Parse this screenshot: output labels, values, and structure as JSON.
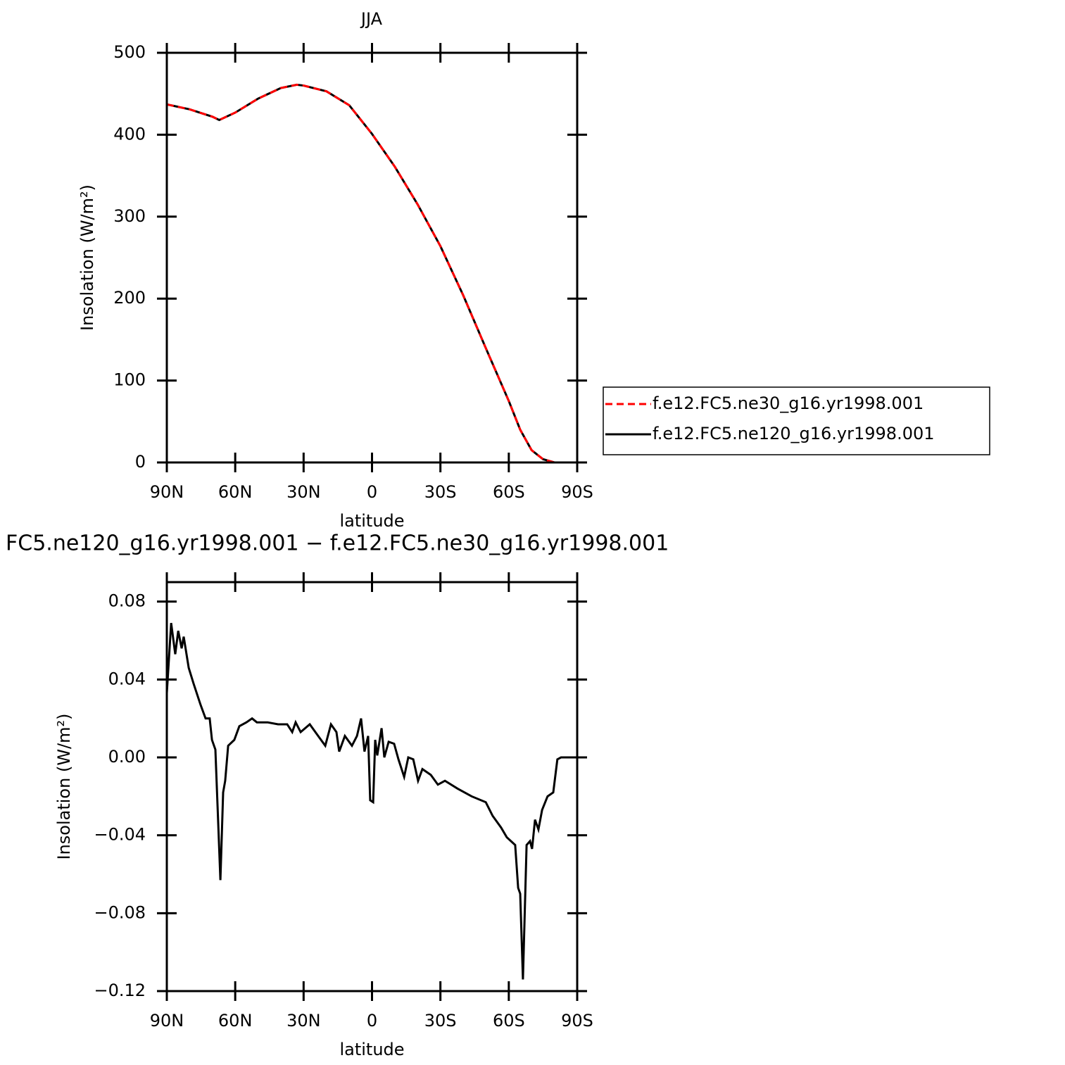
{
  "chart_data": [
    {
      "type": "line",
      "title": "JJA",
      "xlabel": "latitude",
      "ylabel": "Insolation (W/m²)",
      "x": [
        90,
        80,
        70,
        67,
        60,
        50,
        40,
        33,
        30,
        20,
        10,
        0,
        -10,
        -20,
        -30,
        -40,
        -50,
        -60,
        -65,
        -70,
        -75,
        -80,
        -90
      ],
      "series": [
        {
          "name": "f.e12.FC5.ne30_g16.yr1998.001",
          "color": "#ff0000",
          "dash": true,
          "values": [
            437,
            431,
            422,
            418,
            427,
            444,
            457,
            461,
            460,
            453,
            436,
            401,
            361,
            315,
            264,
            204,
            139,
            75,
            40,
            15,
            4,
            0,
            0
          ]
        },
        {
          "name": "f.e12.FC5.ne120_g16.yr1998.001",
          "color": "#000000",
          "dash": false,
          "values": [
            437,
            431,
            422,
            418,
            427,
            444,
            457,
            461,
            460,
            453,
            436,
            401,
            361,
            315,
            264,
            204,
            139,
            75,
            40,
            15,
            4,
            0,
            0
          ]
        }
      ],
      "xlim": [
        90,
        -90
      ],
      "xticks": [
        {
          "value": 90,
          "label": "90N"
        },
        {
          "value": 60,
          "label": "60N"
        },
        {
          "value": 30,
          "label": "30N"
        },
        0,
        {
          "value": -30,
          "label": "30S"
        },
        {
          "value": -60,
          "label": "60S"
        },
        {
          "value": -90,
          "label": "90S"
        }
      ],
      "ylim": [
        0,
        500
      ],
      "yticks": [
        0,
        100,
        200,
        300,
        400,
        500
      ],
      "legend": "right"
    },
    {
      "type": "line",
      "title": "FC5.ne120_g16.yr1998.001 − f.e12.FC5.ne30_g16.yr1998.001",
      "xlabel": "latitude",
      "ylabel": "Insolation (W/m²)",
      "x": [
        90,
        88.1,
        86.3,
        85,
        83.5,
        82.6,
        80.4,
        78.3,
        75.2,
        73,
        71.2,
        70.2,
        68.7,
        66.5,
        65.3,
        64.4,
        63.1,
        60.4,
        58.2,
        55.1,
        52.6,
        50.5,
        45.8,
        41.2,
        37.2,
        35,
        33.5,
        31.3,
        27.3,
        23.6,
        20.5,
        18,
        15.6,
        14.4,
        11.9,
        8.8,
        6.6,
        4.8,
        3.3,
        1.7,
        0.8,
        -0.5,
        -1.4,
        -2.3,
        -4.2,
        -5.4,
        -7.3,
        -9.7,
        -11.6,
        -14.1,
        -15.9,
        -18.1,
        -20.2,
        -22.1,
        -25.8,
        -28.9,
        -32,
        -37.5,
        -43.7,
        -49.9,
        -52.9,
        -56.6,
        -59.1,
        -62.8,
        -64.1,
        -65,
        -66.2,
        -67.8,
        -69.3,
        -70.2,
        -71.5,
        -73,
        -74.6,
        -77,
        -79.5,
        -81.3,
        -82.9,
        -90
      ],
      "series": [
        {
          "color": "#000000",
          "values": [
            0.033,
            0.069,
            0.053,
            0.065,
            0.056,
            0.062,
            0.046,
            0.038,
            0.027,
            0.02,
            0.02,
            0.009,
            0.004,
            -0.063,
            -0.018,
            -0.012,
            0.006,
            0.009,
            0.016,
            0.018,
            0.02,
            0.018,
            0.018,
            0.017,
            0.017,
            0.013,
            0.018,
            0.013,
            0.017,
            0.011,
            0.006,
            0.017,
            0.013,
            0.003,
            0.011,
            0.006,
            0.011,
            0.02,
            0.003,
            0.011,
            -0.022,
            -0.023,
            0.009,
            0.001,
            0.015,
            0,
            0.008,
            0.007,
            -0.001,
            -0.01,
            0,
            -0.001,
            -0.012,
            -0.006,
            -0.009,
            -0.014,
            -0.012,
            -0.016,
            -0.02,
            -0.023,
            -0.03,
            -0.036,
            -0.041,
            -0.045,
            -0.067,
            -0.07,
            -0.114,
            -0.045,
            -0.043,
            -0.047,
            -0.032,
            -0.037,
            -0.027,
            -0.02,
            -0.018,
            -0.001,
            0,
            0
          ]
        }
      ],
      "xlim": [
        90,
        -90
      ],
      "xticks": [
        {
          "value": 90,
          "label": "90N"
        },
        {
          "value": 60,
          "label": "60N"
        },
        {
          "value": 30,
          "label": "30N"
        },
        0,
        {
          "value": -30,
          "label": "30S"
        },
        {
          "value": -60,
          "label": "60S"
        },
        {
          "value": -90,
          "label": "90S"
        }
      ],
      "ylim": [
        -0.12,
        0.09
      ],
      "yticks": [
        {
          "value": -0.12,
          "label": "−0.12"
        },
        {
          "value": -0.08,
          "label": "−0.08"
        },
        {
          "value": -0.04,
          "label": "−0.04"
        },
        {
          "value": 0,
          "label": "0.00"
        },
        0.04,
        0.08
      ]
    }
  ]
}
